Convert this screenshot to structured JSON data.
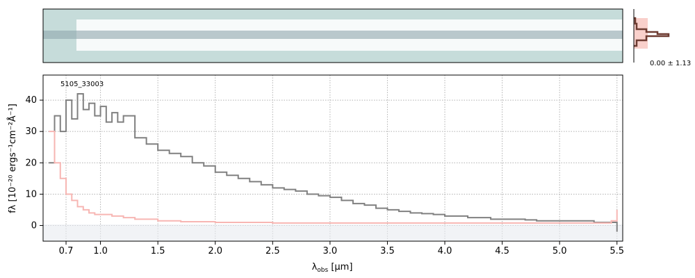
{
  "chart_data": {
    "type": "line",
    "object_label": "5105_33003",
    "xlabel_main": "λ",
    "xlabel_sub": "obs",
    "xlabel_unit": "[μm]",
    "ylabel": "fλ [10⁻²⁰ ergs⁻¹cm⁻²Å⁻¹]",
    "x_ticks": [
      "0.7",
      "1.0",
      "1.5",
      "2.0",
      "2.5",
      "3.0",
      "3.5",
      "4.0",
      "4.5",
      "5.0",
      "5.5"
    ],
    "y_ticks": [
      "0",
      "10",
      "20",
      "30",
      "40"
    ],
    "xlim": [
      0.5,
      5.55
    ],
    "ylim": [
      -5,
      48
    ],
    "grid": true,
    "side_panel_label": "0.00 ± 1.13",
    "series": [
      {
        "color": "#808080",
        "x": [
          0.55,
          0.6,
          0.65,
          0.7,
          0.75,
          0.8,
          0.85,
          0.9,
          0.95,
          1.0,
          1.05,
          1.1,
          1.15,
          1.2,
          1.3,
          1.4,
          1.5,
          1.6,
          1.7,
          1.8,
          1.9,
          2.0,
          2.1,
          2.2,
          2.3,
          2.4,
          2.5,
          2.6,
          2.7,
          2.8,
          2.9,
          3.0,
          3.1,
          3.2,
          3.3,
          3.4,
          3.5,
          3.6,
          3.7,
          3.8,
          3.9,
          4.0,
          4.1,
          4.2,
          4.3,
          4.4,
          4.5,
          4.6,
          4.7,
          4.8,
          4.9,
          5.0,
          5.1,
          5.2,
          5.3,
          5.4,
          5.5
        ],
        "y": [
          20,
          35,
          30,
          40,
          34,
          42,
          37,
          39,
          35,
          38,
          33,
          36,
          33,
          35,
          28,
          26,
          24,
          23,
          22,
          20,
          19,
          17,
          16,
          15,
          14,
          13,
          12,
          11.5,
          11,
          10,
          9.5,
          9,
          8,
          7,
          6.5,
          5.5,
          5,
          4.5,
          4,
          3.8,
          3.5,
          3,
          3,
          2.5,
          2.5,
          2,
          2,
          2,
          1.8,
          1.5,
          1.5,
          1.5,
          1.5,
          1.5,
          1,
          1,
          -2
        ]
      },
      {
        "color": "#f7b6b3",
        "x": [
          0.55,
          0.6,
          0.65,
          0.7,
          0.75,
          0.8,
          0.85,
          0.9,
          0.95,
          1.0,
          1.1,
          1.2,
          1.3,
          1.5,
          1.7,
          2.0,
          2.5,
          3.0,
          3.5,
          4.0,
          4.5,
          5.0,
          5.3,
          5.45,
          5.5
        ],
        "y": [
          30,
          20,
          15,
          10,
          8,
          6,
          5,
          4,
          3.5,
          3.5,
          3,
          2.5,
          2,
          1.5,
          1.2,
          1,
          0.8,
          0.8,
          0.8,
          0.8,
          0.8,
          0.8,
          0.8,
          1.5,
          5
        ]
      }
    ]
  }
}
